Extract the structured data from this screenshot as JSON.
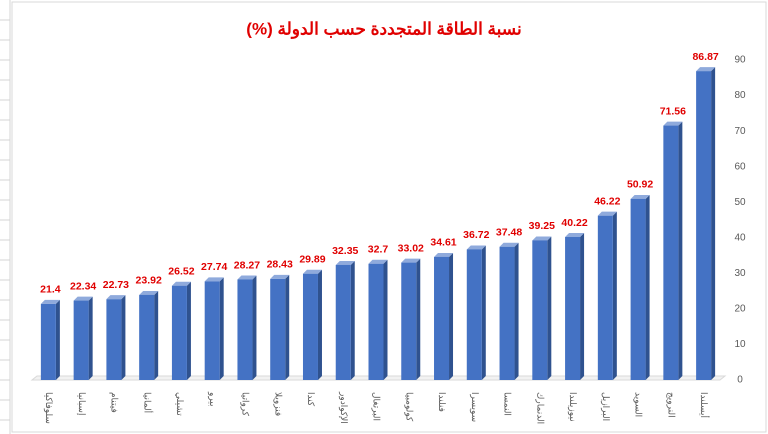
{
  "chart_data": {
    "type": "bar",
    "title": "نسبة الطاقة المتجددة حسب الدولة (%)",
    "categories": [
      "سلوفاكيا",
      "إسبانيا",
      "فيتنام",
      "ألمانيا",
      "تشيلي",
      "بيرو",
      "كرواتيا",
      "فنزويلا",
      "كندا",
      "الإكوادور",
      "البرتغال",
      "كولومبيا",
      "فنلندا",
      "سويسرا",
      "النمسا",
      "الدنمارك",
      "نيوزيلندا",
      "البرازيل",
      "السويد",
      "النرويج",
      "أيسلندا"
    ],
    "values": [
      21.4,
      22.34,
      22.73,
      23.92,
      26.52,
      27.74,
      28.27,
      28.43,
      29.89,
      32.35,
      32.7,
      33.02,
      34.61,
      36.72,
      37.48,
      39.25,
      40.22,
      46.22,
      50.92,
      71.56,
      86.87
    ],
    "color": "#4472c4",
    "ylim": [
      0,
      90
    ],
    "yticks": [
      0,
      10,
      20,
      30,
      40,
      50,
      60,
      70,
      80,
      90
    ],
    "grid": false
  }
}
